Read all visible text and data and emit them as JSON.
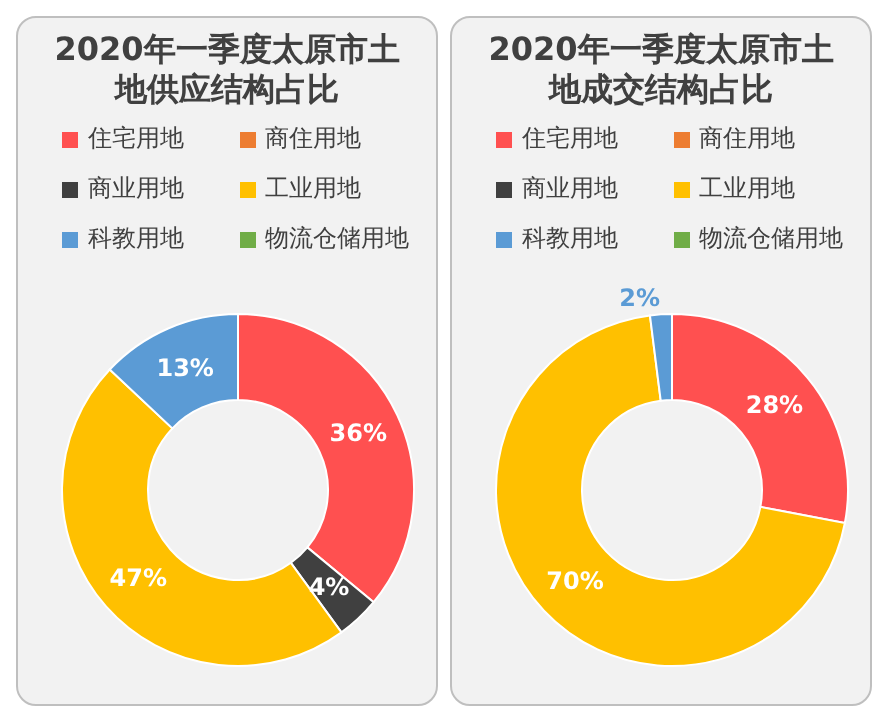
{
  "chart_data": [
    {
      "type": "donut",
      "title": "2020年一季度太原市土地供应结构占比",
      "categories": [
        "住宅用地",
        "商住用地",
        "商业用地",
        "工业用地",
        "科教用地",
        "物流仓储用地"
      ],
      "values": [
        36,
        0,
        4,
        47,
        13,
        0
      ],
      "colors": [
        "#ff5050",
        "#ed7d31",
        "#404040",
        "#ffc000",
        "#5b9bd5",
        "#70ad47"
      ],
      "value_labels": [
        "36%",
        null,
        "4%",
        "47%",
        "13%",
        null
      ],
      "legend": "top"
    },
    {
      "type": "donut",
      "title": "2020年一季度太原市土地成交结构占比",
      "categories": [
        "住宅用地",
        "商住用地",
        "商业用地",
        "工业用地",
        "科教用地",
        "物流仓储用地"
      ],
      "values": [
        28,
        0,
        0,
        70,
        2,
        0
      ],
      "colors": [
        "#ff5050",
        "#ed7d31",
        "#404040",
        "#ffc000",
        "#5b9bd5",
        "#70ad47"
      ],
      "value_labels": [
        "28%",
        null,
        null,
        "70%",
        "2%",
        null
      ],
      "legend": "top"
    }
  ]
}
